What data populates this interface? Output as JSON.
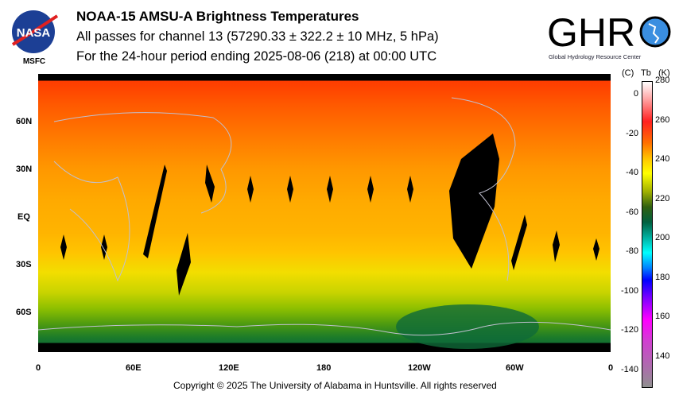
{
  "header": {
    "title": "NOAA-15 AMSU-A Brightness Temperatures",
    "subtitle1": "All passes for channel 13 (57290.33 ± 322.2 ± 10 MHz, 5 hPa)",
    "subtitle2": "For the 24-hour period ending 2025-08-06 (218) at 00:00 UTC"
  },
  "logos": {
    "left": "NASA",
    "left_caption": "MSFC",
    "right": "GHRC",
    "right_caption": "Global Hydrology Resource Center"
  },
  "chart_data": {
    "type": "heatmap",
    "title": "NOAA-15 AMSU-A Brightness Temperatures",
    "lat_ticks": [
      "60N",
      "30N",
      "EQ",
      "30S",
      "60S"
    ],
    "lon_ticks": [
      "0",
      "60E",
      "120E",
      "180",
      "120W",
      "60W",
      "0"
    ],
    "colorbar": {
      "header_c": "(C)",
      "header_tb": "Tb",
      "header_k": "(K)",
      "kelvin_ticks": [
        "280",
        "260",
        "240",
        "220",
        "200",
        "180",
        "160",
        "140"
      ],
      "celsius_ticks": [
        "0",
        "-20",
        "-40",
        "-60",
        "-80",
        "-100",
        "-120",
        "-140"
      ],
      "range_k": [
        125,
        280
      ]
    },
    "description_values": {
      "north_polar_tb_k": 258,
      "equator_tb_k": 242,
      "southern_midlat_tb_k": 228,
      "south_polar_tb_k": 212
    }
  },
  "footer": {
    "copyright": "Copyright © 2025 The University of Alabama in Huntsville.  All rights reserved"
  }
}
